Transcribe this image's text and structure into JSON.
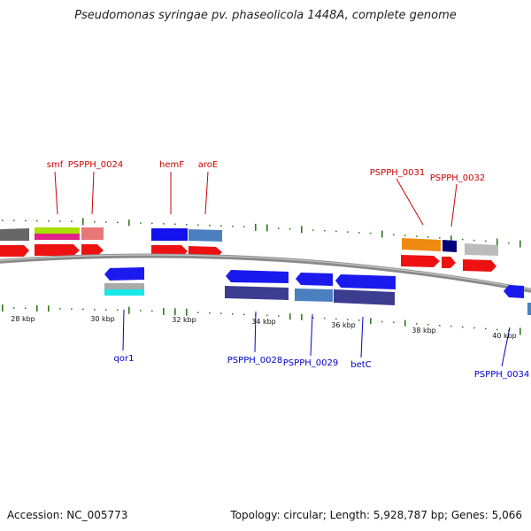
{
  "title": "Pseudomonas syringae pv. phaseolicola 1448A, complete genome",
  "footer": {
    "accession": "Accession: NC_005773",
    "summary": "Topology: circular; Length: 5,928,787 bp; Genes: 5,066"
  },
  "colors": {
    "backbone": "#8a8a8a",
    "forward_label": "#cc0000",
    "reverse_label": "#0000cc",
    "gc_tick": "#2f7a1f",
    "cds_forward": "#ee1111",
    "cds_reverse": "#1a1aee"
  },
  "scale_ticks": [
    "28 kbp",
    "30 kbp",
    "32 kbp",
    "34 kbp",
    "36 kbp",
    "38 kbp",
    "40 kbp"
  ],
  "forward_genes": [
    {
      "name": "smf"
    },
    {
      "name": "PSPPH_0024"
    },
    {
      "name": "hemF"
    },
    {
      "name": "aroE"
    },
    {
      "name": "PSPPH_0031"
    },
    {
      "name": "PSPPH_0032"
    }
  ],
  "reverse_genes": [
    {
      "name": "qor1"
    },
    {
      "name": "PSPPH_0028"
    },
    {
      "name": "PSPPH_0029"
    },
    {
      "name": "betC"
    },
    {
      "name": "PSPPH_0034"
    }
  ]
}
